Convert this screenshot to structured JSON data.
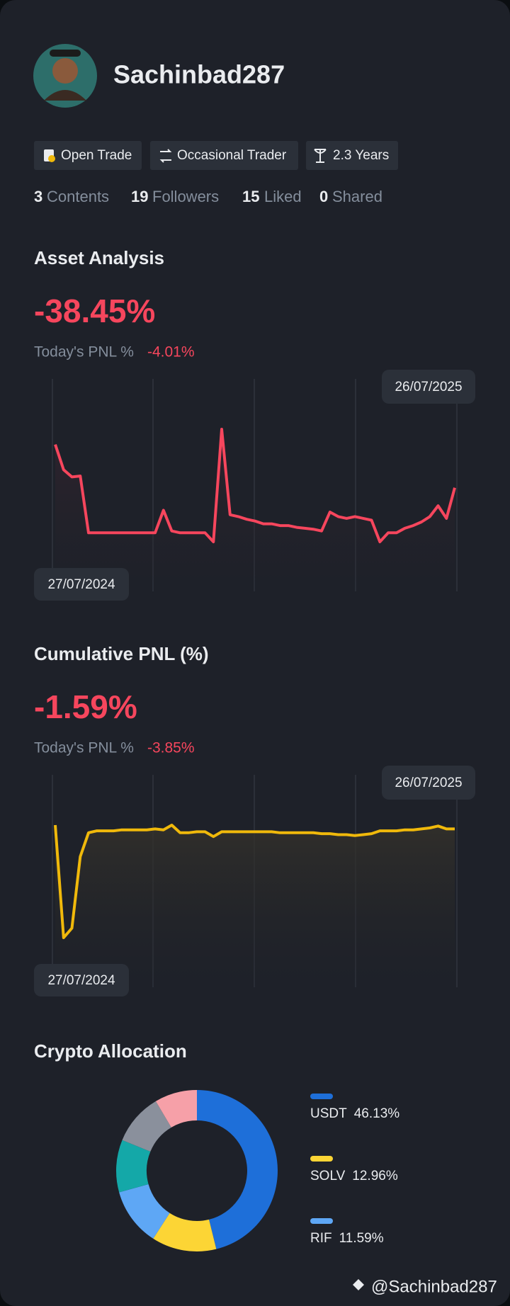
{
  "profile": {
    "username": "Sachinbad287",
    "tags": [
      "Open Trade",
      "Occasional Trader",
      "2.3 Years"
    ],
    "stats": [
      {
        "count": 3,
        "label": "Contents"
      },
      {
        "count": 19,
        "label": "Followers"
      },
      {
        "count": 15,
        "label": "Liked"
      },
      {
        "count": 0,
        "label": "Shared"
      }
    ]
  },
  "asset_analysis": {
    "title": "Asset Analysis",
    "value": "-38.45%",
    "today_label": "Today's PNL %",
    "today_value": "-4.01%",
    "start_date": "27/07/2024",
    "end_date": "26/07/2025",
    "chart": {
      "type": "line",
      "color": "#f6465d",
      "values": [
        168,
        140,
        132,
        133,
        70,
        70,
        70,
        70,
        70,
        70,
        70,
        70,
        70,
        95,
        72,
        70,
        70,
        70,
        70,
        60,
        185,
        90,
        88,
        85,
        83,
        80,
        80,
        78,
        78,
        76,
        75,
        74,
        72,
        93,
        88,
        86,
        88,
        86,
        84,
        60,
        70,
        70,
        75,
        78,
        82,
        88,
        100,
        86,
        120
      ]
    }
  },
  "cumulative_pnl": {
    "title": "Cumulative PNL (%)",
    "value": "-1.59%",
    "today_label": "Today's PNL %",
    "today_value": "-3.85%",
    "start_date": "27/07/2024",
    "end_date": "26/07/2025",
    "chart": {
      "type": "line",
      "color": "#f0b90b",
      "values": [
        208,
        90,
        100,
        175,
        200,
        202,
        202,
        202,
        203,
        203,
        203,
        203,
        204,
        203,
        208,
        200,
        200,
        201,
        201,
        196,
        201,
        201,
        201,
        201,
        201,
        201,
        201,
        200,
        200,
        200,
        200,
        200,
        199,
        199,
        198,
        198,
        197,
        198,
        199,
        202,
        202,
        202,
        203,
        203,
        204,
        205,
        207,
        204,
        204
      ]
    }
  },
  "crypto_allocation": {
    "title": "Crypto Allocation",
    "chart": {
      "type": "donut",
      "categories": [
        "USDT",
        "SOLV",
        "RIF",
        null,
        null,
        null
      ],
      "values": [
        46.13,
        12.96,
        11.59,
        10.5,
        10.3,
        8.5
      ],
      "value_labels": [
        "46.13%",
        "12.96%",
        "11.59%",
        null,
        null,
        null
      ],
      "colors": [
        "#1e6fd9",
        "#fcd535",
        "#5ea7f5",
        "#14a8a8",
        "#8a909c",
        "#f6a0a8"
      ]
    }
  },
  "footer": {
    "handle": "@Sachinbad287"
  }
}
